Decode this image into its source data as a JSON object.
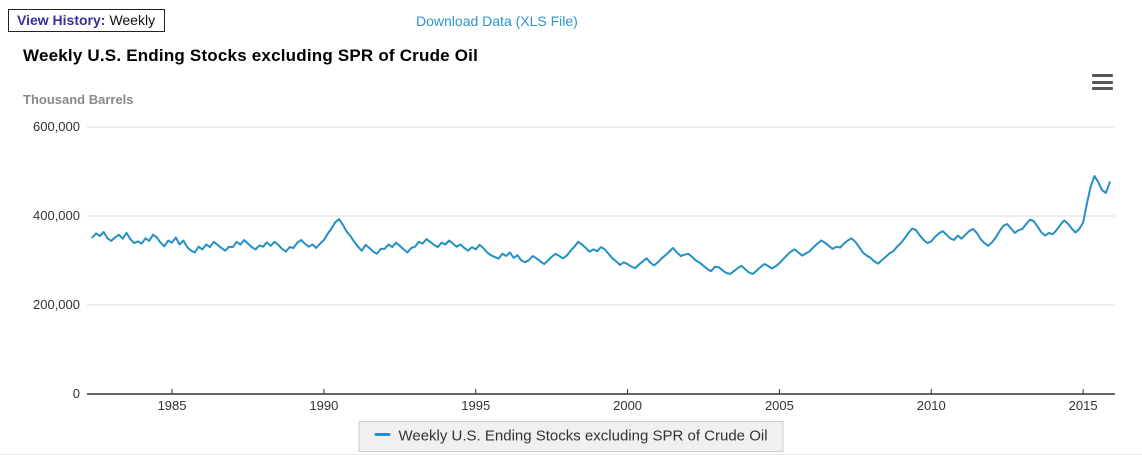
{
  "toolbar": {
    "view_history_label": "View History:",
    "view_history_value": "Weekly",
    "download_link": "Download Data (XLS File)"
  },
  "header": {
    "title": "Weekly U.S. Ending Stocks excluding SPR of Crude Oil",
    "y_axis_unit": "Thousand Barrels"
  },
  "legend": {
    "label": "Weekly U.S. Ending Stocks excluding SPR of Crude Oil"
  },
  "icons": {
    "menu": "hamburger-menu-icon"
  },
  "colors": {
    "line": "#2391c3",
    "link": "#2d95cf",
    "label_navy": "#333399",
    "grid": "#d8d8d8",
    "axis": "#333333",
    "unit_gray": "#898989",
    "legend_bg": "#f0f0f0",
    "legend_border": "#cccccc"
  },
  "chart_data": {
    "type": "line",
    "title": "Weekly U.S. Ending Stocks excluding SPR of Crude Oil",
    "xlabel": "",
    "ylabel": "Thousand Barrels",
    "grid": true,
    "legend_position": "bottom",
    "xlim": [
      1982.2,
      2016.05
    ],
    "ylim": [
      0,
      600000
    ],
    "x_ticks": [
      {
        "v": 1985,
        "label": "1985"
      },
      {
        "v": 1990,
        "label": "1990"
      },
      {
        "v": 1995,
        "label": "1995"
      },
      {
        "v": 2000,
        "label": "2000"
      },
      {
        "v": 2005,
        "label": "2005"
      },
      {
        "v": 2010,
        "label": "2010"
      },
      {
        "v": 2015,
        "label": "2015"
      }
    ],
    "y_ticks": [
      {
        "v": 0,
        "label": "0"
      },
      {
        "v": 200000,
        "label": "200,000"
      },
      {
        "v": 400000,
        "label": "400,000"
      },
      {
        "v": 600000,
        "label": "600,000"
      }
    ],
    "series": [
      {
        "name": "Weekly U.S. Ending Stocks excluding SPR of Crude Oil",
        "x_start": 1982.375,
        "x_step": 0.125,
        "values": [
          352000,
          361000,
          355000,
          364000,
          350000,
          344000,
          352000,
          358000,
          349000,
          362000,
          348000,
          339000,
          343000,
          338000,
          350000,
          344000,
          358000,
          352000,
          340000,
          332000,
          345000,
          340000,
          352000,
          336000,
          345000,
          330000,
          322000,
          318000,
          331000,
          325000,
          336000,
          330000,
          342000,
          335000,
          328000,
          322000,
          331000,
          330000,
          342000,
          336000,
          346000,
          338000,
          330000,
          325000,
          334000,
          331000,
          341000,
          333000,
          342000,
          335000,
          326000,
          320000,
          330000,
          328000,
          340000,
          346000,
          338000,
          331000,
          336000,
          328000,
          338000,
          346000,
          360000,
          372000,
          386000,
          393000,
          380000,
          365000,
          355000,
          342000,
          331000,
          322000,
          335000,
          328000,
          320000,
          315000,
          326000,
          326000,
          336000,
          330000,
          340000,
          333000,
          325000,
          318000,
          328000,
          331000,
          342000,
          338000,
          348000,
          342000,
          335000,
          330000,
          340000,
          336000,
          345000,
          338000,
          331000,
          336000,
          328000,
          322000,
          330000,
          325000,
          335000,
          328000,
          318000,
          312000,
          308000,
          304000,
          315000,
          310000,
          318000,
          306000,
          312000,
          300000,
          296000,
          301000,
          310000,
          305000,
          298000,
          292000,
          300000,
          308000,
          315000,
          310000,
          305000,
          311000,
          322000,
          331000,
          342000,
          336000,
          328000,
          320000,
          325000,
          321000,
          330000,
          325000,
          315000,
          305000,
          298000,
          290000,
          296000,
          292000,
          286000,
          283000,
          291000,
          298000,
          305000,
          295000,
          289000,
          296000,
          305000,
          312000,
          320000,
          328000,
          318000,
          310000,
          313000,
          315000,
          308000,
          300000,
          295000,
          288000,
          281000,
          276000,
          286000,
          285000,
          278000,
          272000,
          270000,
          276000,
          283000,
          288000,
          280000,
          273000,
          270000,
          277000,
          285000,
          292000,
          288000,
          282000,
          287000,
          294000,
          303000,
          312000,
          320000,
          325000,
          318000,
          311000,
          316000,
          321000,
          330000,
          338000,
          345000,
          340000,
          333000,
          326000,
          331000,
          329000,
          338000,
          345000,
          350000,
          342000,
          330000,
          318000,
          311000,
          306000,
          298000,
          293000,
          301000,
          308000,
          316000,
          321000,
          331000,
          339000,
          350000,
          362000,
          372000,
          368000,
          356000,
          346000,
          339000,
          343000,
          353000,
          361000,
          366000,
          358000,
          350000,
          346000,
          356000,
          349000,
          358000,
          366000,
          371000,
          362000,
          348000,
          339000,
          333000,
          341000,
          352000,
          366000,
          378000,
          382000,
          372000,
          362000,
          368000,
          371000,
          382000,
          392000,
          388000,
          376000,
          363000,
          356000,
          362000,
          359000,
          368000,
          380000,
          390000,
          383000,
          372000,
          363000,
          371000,
          385000,
          428000,
          466000,
          490000,
          476000,
          458000,
          452000,
          476000
        ]
      }
    ]
  }
}
